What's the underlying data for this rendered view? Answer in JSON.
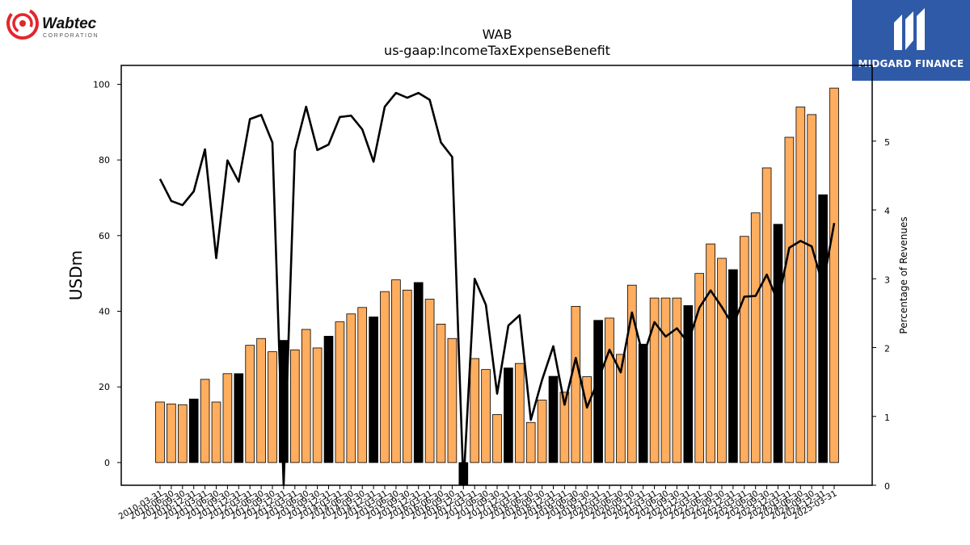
{
  "branding": {
    "company_logo_name": "Wabtec",
    "company_logo_sub": "CORPORATION",
    "company_logo_color": "#e3262e",
    "publisher_logo_name": "MIDGARD FINANCE",
    "publisher_logo_color": "#2f5aa7"
  },
  "chart_data": {
    "type": "bar",
    "title": "WAB",
    "subtitle": "us-gaap:IncomeTaxExpenseBenefit",
    "ylabel": "USDm",
    "y2label": "Percentage of Revenues",
    "ylim": [
      -6,
      105
    ],
    "y2lim": [
      0,
      6.1
    ],
    "yticks": [
      0,
      20,
      40,
      60,
      80,
      100
    ],
    "y2ticks": [
      0,
      1,
      2,
      3,
      4,
      5
    ],
    "grid": false,
    "bar_color": "#ffad5e",
    "q4_bar_color": "#000000",
    "line_color": "#000000",
    "categories": [
      "2010-03-31",
      "2010-06-30",
      "2010-09-30",
      "2010-12-31",
      "2011-03-31",
      "2011-06-30",
      "2011-09-30",
      "2011-12-31",
      "2012-03-31",
      "2012-06-30",
      "2012-09-30",
      "2012-12-31",
      "2013-03-31",
      "2013-06-30",
      "2013-09-30",
      "2013-12-31",
      "2014-03-31",
      "2014-06-30",
      "2014-09-30",
      "2014-12-31",
      "2015-03-31",
      "2015-06-30",
      "2015-09-30",
      "2015-12-31",
      "2016-03-31",
      "2016-06-30",
      "2016-09-30",
      "2016-12-31",
      "2017-03-31",
      "2017-06-30",
      "2017-09-30",
      "2017-12-31",
      "2018-03-31",
      "2018-06-30",
      "2018-09-30",
      "2018-12-31",
      "2019-03-31",
      "2019-06-30",
      "2019-09-30",
      "2019-12-31",
      "2020-03-31",
      "2020-06-30",
      "2020-09-30",
      "2020-12-31",
      "2021-03-31",
      "2021-06-30",
      "2021-09-30",
      "2021-12-31",
      "2022-03-31",
      "2022-06-30",
      "2022-09-30",
      "2022-12-31",
      "2023-03-31",
      "2023-06-30",
      "2023-09-30",
      "2023-12-31",
      "2024-03-31",
      "2024-06-30",
      "2024-09-30",
      "2024-12-31",
      "2025-03-31"
    ],
    "xtick_labels": [
      "2010-03-31",
      "2010-06-30",
      "2010-09-30",
      "2010-12-31",
      "2011-03-31",
      "2011-06-30",
      "2011-09-30",
      "2011-12-31",
      "2012-03-31",
      "2012-06-30",
      "2012-09-30",
      "2012-12-31",
      "2013-03-31",
      "2013-06-30",
      "2013-09-30",
      "2013-12-31",
      "2014-03-31",
      "2014-06-30",
      "2014-09-30",
      "2014-12-31",
      "2015-03-31",
      "2015-06-30",
      "2015-09-30",
      "2015-12-31",
      "2016-03-31",
      "2016-06-30",
      "2016-09-30",
      "2016-12-31",
      "2017-03-31",
      "2017-06-30",
      "2017-09-30",
      "2017-12-31",
      "2018-03-31",
      "2018-06-30",
      "2018-09-30",
      "2018-12-31",
      "2019-03-31",
      "2019-06-30",
      "2019-09-30",
      "2019-12-31",
      "2020-03-31",
      "2020-06-30",
      "2020-09-30",
      "2020-12-31",
      "2021-03-31",
      "2021-06-30",
      "2021-09-30",
      "2021-12-31",
      "2022-03-31",
      "2022-06-30",
      "2022-09-30",
      "2022-12-31",
      "2023-03-31",
      "2023-06-30",
      "2023-09-30",
      "2023-12-31",
      "2024-03-31",
      "2024-06-30",
      "2024-09-30",
      "2024-12-31",
      "2025-03-31"
    ],
    "series": [
      {
        "axis": "left",
        "type": "bar",
        "values": [
          16,
          15.5,
          15.3,
          16.8,
          22,
          16,
          23.5,
          23.5,
          31,
          32.8,
          29.3,
          32.3,
          29.8,
          35.2,
          30.3,
          33.4,
          37.2,
          39.3,
          41,
          38.5,
          45.2,
          48.3,
          45.6,
          47.6,
          43.2,
          36.6,
          32.8,
          -8,
          27.5,
          24.6,
          12.7,
          25,
          26.2,
          10.6,
          16.5,
          22.8,
          18.6,
          41.3,
          22.7,
          37.6,
          38.2,
          28.6,
          46.9,
          31.3,
          43.5,
          43.5,
          43.5,
          41.5,
          50,
          57.8,
          54,
          51,
          59.8,
          66,
          77.9,
          63,
          86,
          94,
          92,
          70.8,
          99
        ]
      },
      {
        "axis": "right",
        "type": "line",
        "values": [
          4.45,
          4.13,
          4.07,
          4.27,
          4.88,
          3.3,
          4.72,
          4.41,
          5.32,
          5.38,
          4.98,
          -0.5,
          4.86,
          5.5,
          4.87,
          4.95,
          5.35,
          5.37,
          5.17,
          4.7,
          5.5,
          5.7,
          5.63,
          5.7,
          5.6,
          4.98,
          4.77,
          -0.5,
          3.0,
          2.62,
          1.33,
          2.32,
          2.47,
          0.95,
          1.53,
          2.02,
          1.17,
          1.85,
          1.13,
          1.53,
          1.97,
          1.64,
          2.51,
          1.87,
          2.37,
          2.16,
          2.28,
          2.07,
          2.58,
          2.83,
          2.59,
          2.32,
          2.74,
          2.75,
          3.06,
          2.66,
          3.45,
          3.55,
          3.47,
          2.9,
          3.81
        ]
      }
    ]
  }
}
